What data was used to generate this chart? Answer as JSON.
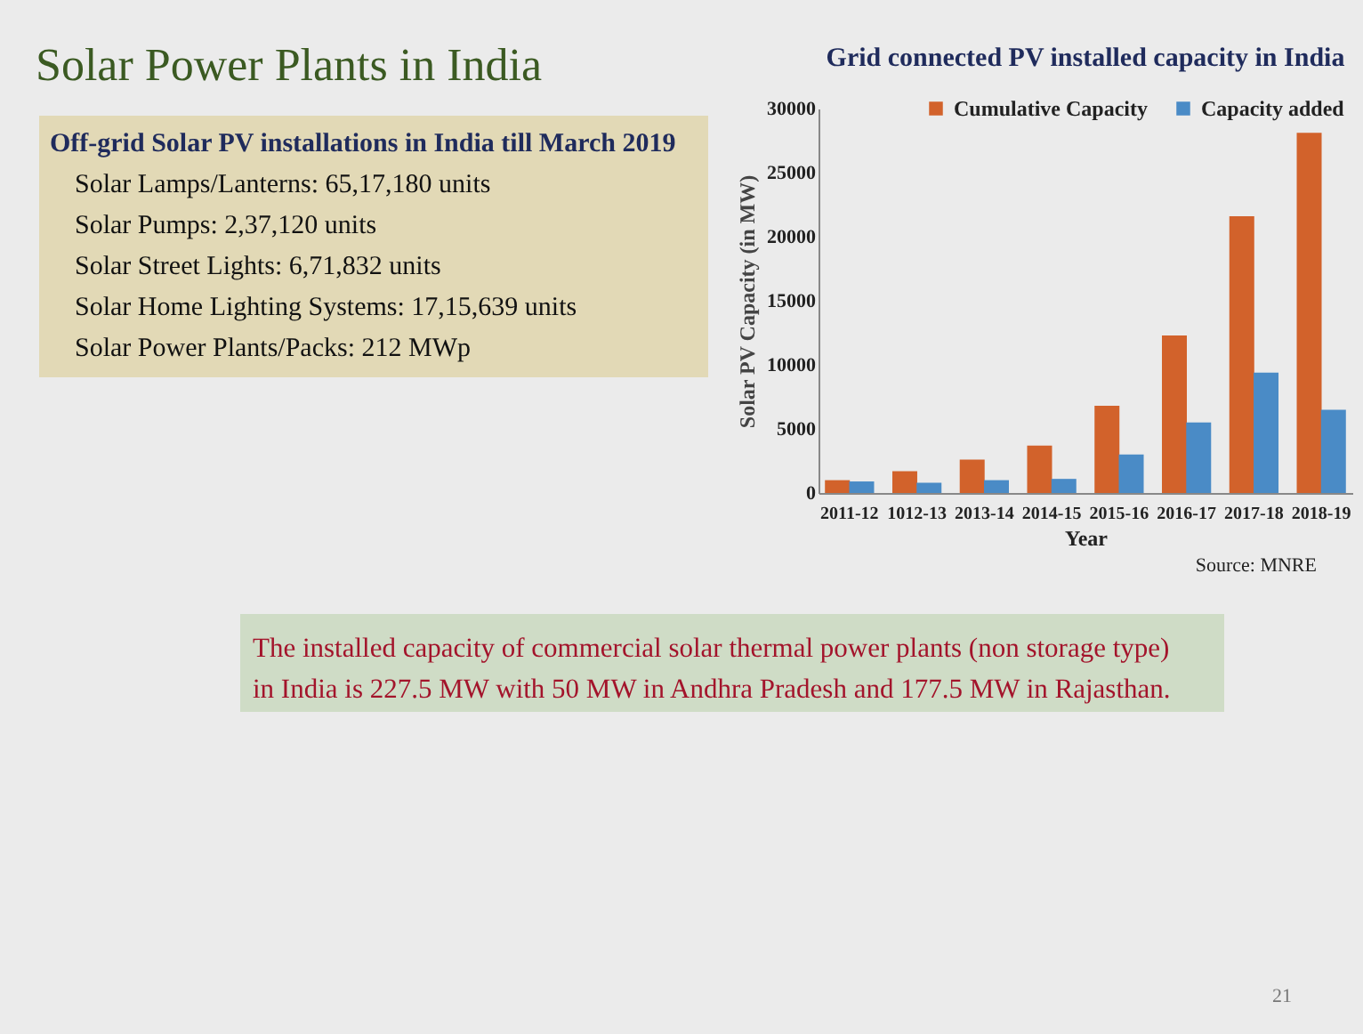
{
  "chart_data": {
    "type": "bar",
    "title": "Grid connected PV installed capacity in India",
    "categories": [
      "2011-12",
      "1012-13",
      "2013-14",
      "2014-15",
      "2015-16",
      "2016-17",
      "2017-18",
      "2018-19"
    ],
    "series": [
      {
        "name": "Cumulative Capacity",
        "color": "#d2622b",
        "values": [
          1000,
          1700,
          2600,
          3700,
          6800,
          12300,
          21600,
          28100
        ]
      },
      {
        "name": "Capacity added",
        "color": "#4a8bc6",
        "values": [
          900,
          800,
          1000,
          1100,
          3000,
          5500,
          9400,
          6500
        ]
      }
    ],
    "xlabel": "Year",
    "ylabel": "Solar PV Capacity (in MW)",
    "ylim": [
      0,
      30000
    ],
    "yticks": [
      0,
      5000,
      10000,
      15000,
      20000,
      25000,
      30000
    ],
    "grid": false,
    "legend": "top",
    "annotations": [
      "Solar Power Plants in India",
      "Off-grid Solar PV installations in India till March 2019",
      "Solar Lamps/Lanterns: 65,17,180 units",
      "Solar Pumps: 2,37,120 units",
      "Solar Street Lights: 6,71,832 units",
      "Solar Home Lighting Systems: 17,15,639 units",
      "Solar Power Plants/Packs: 212 MWp",
      "The installed capacity of commercial solar thermal power plants (non storage type)",
      "in India is 227.5 MW with 50 MW in Andhra Pradesh and 177.5 MW in Rajasthan.",
      "Source: MNRE",
      "21"
    ]
  }
}
